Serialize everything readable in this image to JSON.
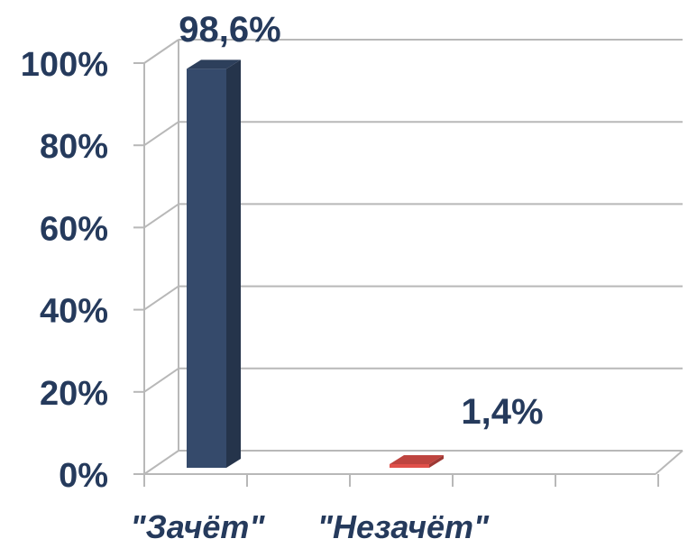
{
  "chart_data": {
    "type": "bar",
    "categories": [
      "\"Зачёт\"",
      "\"Незачёт\""
    ],
    "values": [
      98.6,
      1.4
    ],
    "data_labels": [
      "98,6%",
      "1,4%"
    ],
    "y_ticks": [
      "0%",
      "20%",
      "40%",
      "60%",
      "80%",
      "100%"
    ],
    "ylim": [
      0,
      100
    ],
    "grid": true,
    "colors": {
      "series": [
        "#354a6b",
        "#e0504a"
      ],
      "text": "#253a5c",
      "grid": "#b8b8b8"
    }
  }
}
